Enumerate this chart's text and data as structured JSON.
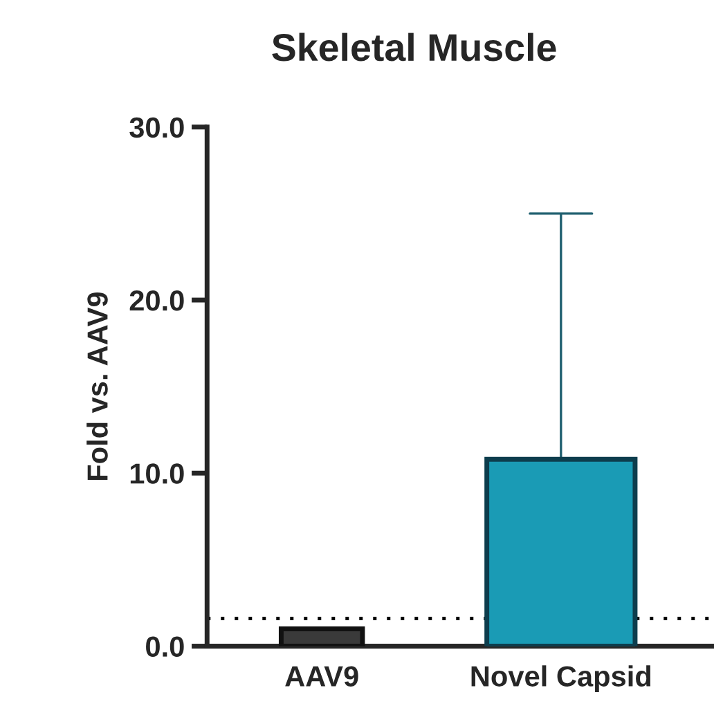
{
  "chart_data": {
    "type": "bar",
    "title": "Skeletal Muscle",
    "ylabel": "Fold vs. AAV9",
    "categories": [
      "AAV9",
      "Novel Capsid"
    ],
    "values": [
      1.0,
      10.8
    ],
    "colors": [
      "#3a3a3a",
      "#1a9bb5"
    ],
    "errors": [
      null,
      [
        10.8,
        25.0
      ]
    ],
    "ylim": [
      0,
      30
    ],
    "yticks": [
      {
        "value": 0,
        "label": "0.0"
      },
      {
        "value": 10,
        "label": "10.0"
      },
      {
        "value": 20,
        "label": "20.0"
      },
      {
        "value": 30,
        "label": "30.0"
      }
    ],
    "ref_lines": [
      {
        "axis": "y",
        "value": 1.6,
        "label": null,
        "color": "#000000",
        "line_style": "dotted"
      }
    ],
    "grid": false,
    "legend": false
  }
}
